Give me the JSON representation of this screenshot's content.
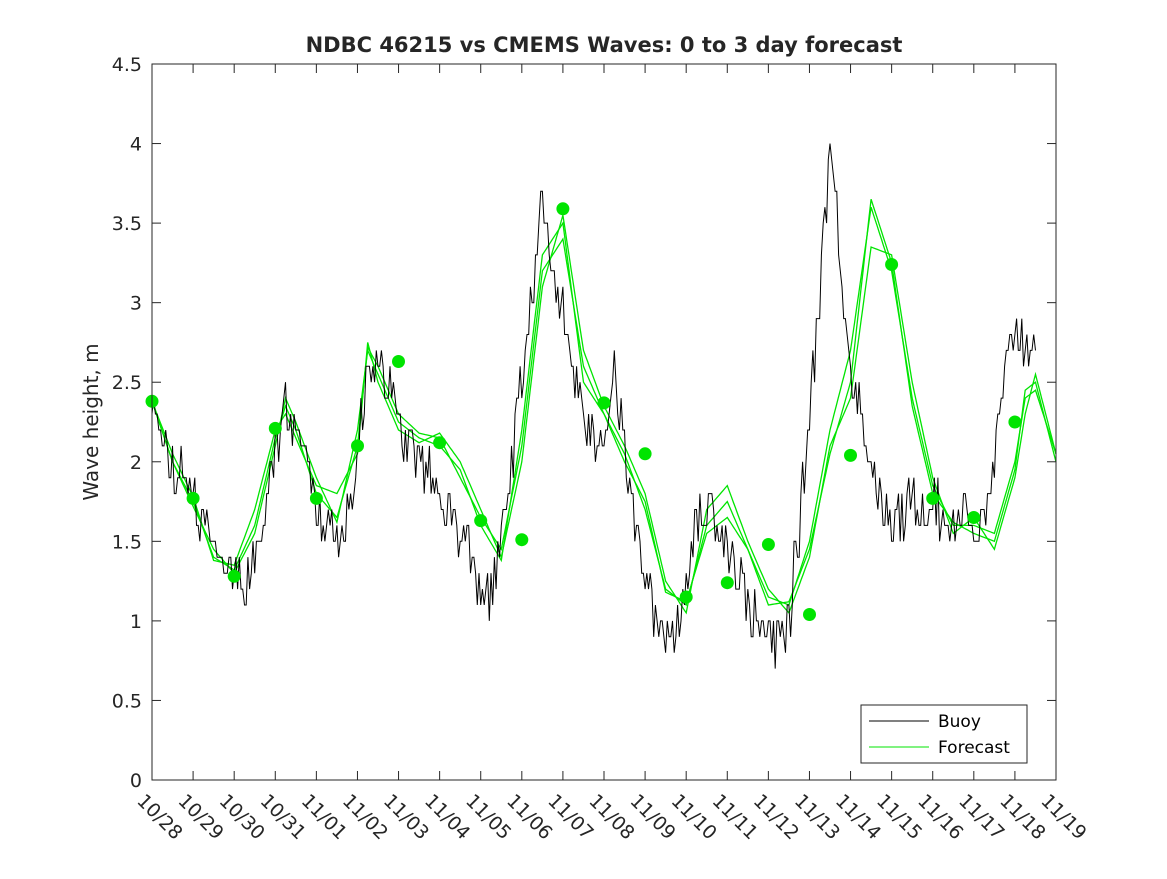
{
  "chart_data": {
    "type": "line",
    "title": "NDBC 46215 vs CMEMS Waves: 0 to 3 day forecast",
    "xlabel": "",
    "ylabel": "Wave height, m",
    "ylim": [
      0,
      4.5
    ],
    "xlim": [
      "10/28",
      "11/19"
    ],
    "y_ticks": [
      "0",
      "0.5",
      "1",
      "1.5",
      "2",
      "2.5",
      "3",
      "3.5",
      "4",
      "4.5"
    ],
    "x_ticks": [
      "10/28",
      "10/29",
      "10/30",
      "10/31",
      "11/01",
      "11/02",
      "11/03",
      "11/04",
      "11/05",
      "11/06",
      "11/07",
      "11/08",
      "11/09",
      "11/10",
      "11/11",
      "11/12",
      "11/13",
      "11/14",
      "11/15",
      "11/16",
      "11/17",
      "11/18",
      "11/19"
    ],
    "grid": false,
    "legend_position": "bottom-right",
    "series": [
      {
        "name": "Buoy",
        "color": "#000000",
        "x_days_from_10_28": [
          0,
          0.25,
          0.5,
          0.75,
          1,
          1.25,
          1.5,
          1.75,
          2,
          2.25,
          2.5,
          2.75,
          3,
          3.25,
          3.5,
          3.75,
          4,
          4.25,
          4.5,
          4.75,
          5,
          5.25,
          5.5,
          5.75,
          6,
          6.25,
          6.5,
          6.75,
          7,
          7.25,
          7.5,
          7.75,
          8,
          8.25,
          8.5,
          8.75,
          9,
          9.25,
          9.5,
          9.75,
          10,
          10.25,
          10.5,
          10.75,
          11,
          11.25,
          11.5,
          11.75,
          12,
          12.25,
          12.5,
          12.75,
          13,
          13.25,
          13.5,
          13.75,
          14,
          14.25,
          14.5,
          14.75,
          15,
          15.25,
          15.5,
          15.75,
          16,
          16.25,
          16.5,
          16.75,
          17,
          17.25,
          17.5,
          17.75,
          18,
          18.25,
          18.5,
          18.75,
          19,
          19.25,
          19.5,
          19.75,
          20,
          20.25,
          20.5,
          20.75,
          21,
          21.25,
          21.5
        ],
        "values": [
          2.4,
          2.1,
          2.0,
          1.9,
          1.8,
          1.6,
          1.5,
          1.35,
          1.3,
          1.25,
          1.4,
          1.7,
          2.1,
          2.35,
          2.2,
          2.0,
          1.7,
          1.6,
          1.55,
          1.65,
          2.0,
          2.6,
          2.7,
          2.5,
          2.2,
          2.1,
          2.0,
          1.9,
          1.8,
          1.7,
          1.55,
          1.4,
          1.2,
          1.15,
          1.5,
          2.0,
          2.5,
          3.1,
          3.6,
          3.2,
          2.9,
          2.6,
          2.3,
          2.1,
          2.2,
          2.6,
          2.1,
          1.6,
          1.3,
          1.0,
          0.95,
          0.9,
          1.3,
          1.6,
          1.7,
          1.65,
          1.5,
          1.3,
          1.1,
          0.95,
          0.9,
          0.85,
          1.0,
          1.6,
          2.3,
          3.1,
          4.0,
          3.3,
          2.6,
          2.3,
          2.0,
          1.7,
          1.6,
          1.65,
          1.75,
          1.7,
          1.8,
          1.6,
          1.6,
          1.75,
          1.55,
          1.6,
          2.0,
          2.5,
          2.9,
          2.7,
          2.85
        ]
      },
      {
        "name": "Forecast",
        "color": "#00e400",
        "x_days_from_10_28": [
          0,
          0.5,
          1,
          1.5,
          2,
          2.5,
          3,
          3.25,
          3.5,
          4,
          4.5,
          5,
          5.25,
          5.5,
          6,
          6.5,
          7,
          7.5,
          8,
          8.5,
          9,
          9.5,
          10,
          10.5,
          11,
          11.5,
          12,
          12.5,
          13,
          13.5,
          14,
          14.5,
          15,
          15.5,
          16,
          16.5,
          17,
          17.5,
          18,
          18.5,
          19,
          19.5,
          20,
          20.5,
          21,
          21.25,
          21.5,
          22
        ],
        "values": [
          2.38,
          2.0,
          1.75,
          1.4,
          1.32,
          1.6,
          2.15,
          2.35,
          2.2,
          1.8,
          1.65,
          2.1,
          2.72,
          2.6,
          2.3,
          2.18,
          2.15,
          1.9,
          1.65,
          1.45,
          2.1,
          3.2,
          3.4,
          2.6,
          2.3,
          2.05,
          1.7,
          1.2,
          1.1,
          1.6,
          1.75,
          1.45,
          1.15,
          1.1,
          1.5,
          2.2,
          2.7,
          3.6,
          3.2,
          2.4,
          1.85,
          1.6,
          1.6,
          1.55,
          2.0,
          2.4,
          2.45,
          2.05
        ]
      },
      {
        "name": "",
        "color": "#00e400",
        "x_days_from_10_28": [
          0,
          0.5,
          1,
          1.5,
          2,
          2.5,
          3,
          3.25,
          3.5,
          4,
          4.5,
          5,
          5.25,
          5.5,
          6,
          6.5,
          7,
          7.5,
          8,
          8.5,
          9,
          9.5,
          10,
          10.5,
          11,
          11.5,
          12,
          12.5,
          13,
          13.5,
          14,
          14.5,
          15,
          15.5,
          16,
          16.5,
          17,
          17.5,
          18,
          18.5,
          19,
          19.5,
          20,
          20.5,
          21,
          21.25,
          21.5,
          22
        ],
        "values": [
          2.38,
          2.05,
          1.78,
          1.38,
          1.35,
          1.7,
          2.2,
          2.3,
          2.15,
          1.85,
          1.8,
          2.05,
          2.75,
          2.5,
          2.2,
          2.12,
          2.18,
          2.0,
          1.7,
          1.4,
          2.0,
          3.1,
          3.55,
          2.7,
          2.35,
          2.1,
          1.8,
          1.25,
          1.05,
          1.7,
          1.85,
          1.5,
          1.2,
          1.05,
          1.4,
          2.1,
          2.4,
          3.35,
          3.3,
          2.5,
          1.9,
          1.55,
          1.65,
          1.45,
          1.9,
          2.3,
          2.55,
          2.05
        ]
      },
      {
        "name": "",
        "color": "#00e400",
        "x_days_from_10_28": [
          0,
          0.5,
          1,
          1.5,
          2,
          2.5,
          3,
          3.25,
          3.5,
          4,
          4.5,
          5,
          5.25,
          5.5,
          6,
          6.5,
          7,
          7.5,
          8,
          8.5,
          9,
          9.5,
          10,
          10.5,
          11,
          11.5,
          12,
          12.5,
          13,
          13.5,
          14,
          14.5,
          15,
          15.5,
          16,
          16.5,
          17,
          17.5,
          18,
          18.5,
          19,
          19.5,
          20,
          20.5,
          21,
          21.25,
          21.5,
          22
        ],
        "values": [
          2.38,
          2.0,
          1.72,
          1.45,
          1.3,
          1.55,
          2.1,
          2.4,
          2.25,
          1.9,
          1.62,
          2.2,
          2.7,
          2.55,
          2.25,
          2.15,
          2.1,
          1.95,
          1.6,
          1.38,
          2.2,
          3.3,
          3.5,
          2.5,
          2.3,
          2.0,
          1.75,
          1.18,
          1.12,
          1.55,
          1.65,
          1.45,
          1.1,
          1.12,
          1.45,
          2.05,
          2.5,
          3.65,
          3.25,
          2.35,
          1.8,
          1.62,
          1.55,
          1.5,
          1.95,
          2.45,
          2.5,
          2.0
        ]
      }
    ],
    "markers": {
      "name": "Forecast",
      "color": "#00e400",
      "x_days_from_10_28": [
        0,
        1,
        2,
        3,
        4,
        5,
        6,
        7,
        8,
        9,
        10,
        11,
        12,
        13,
        14,
        15,
        16,
        17,
        18,
        19,
        20,
        21
      ],
      "values": [
        2.38,
        1.77,
        1.28,
        2.21,
        1.77,
        2.1,
        2.63,
        2.12,
        1.63,
        1.51,
        3.59,
        2.37,
        2.05,
        1.15,
        1.24,
        1.48,
        1.04,
        2.04,
        3.24,
        1.77,
        1.65,
        2.25
      ]
    }
  }
}
